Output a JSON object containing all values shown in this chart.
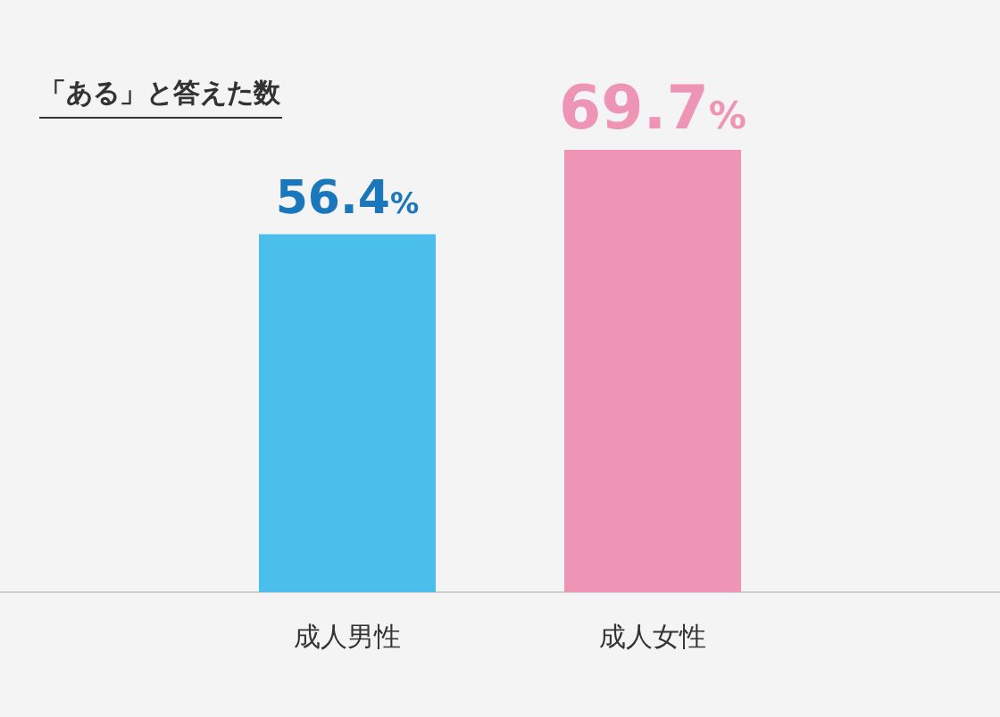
{
  "chart_data": {
    "type": "bar",
    "title": "「ある」と答えた数",
    "categories": [
      "成人男性",
      "成人女性"
    ],
    "values": [
      56.4,
      69.7
    ],
    "colors": [
      "#4bbfec",
      "#ee95b5"
    ],
    "value_labels": [
      "56.4%",
      "69.7%"
    ]
  }
}
